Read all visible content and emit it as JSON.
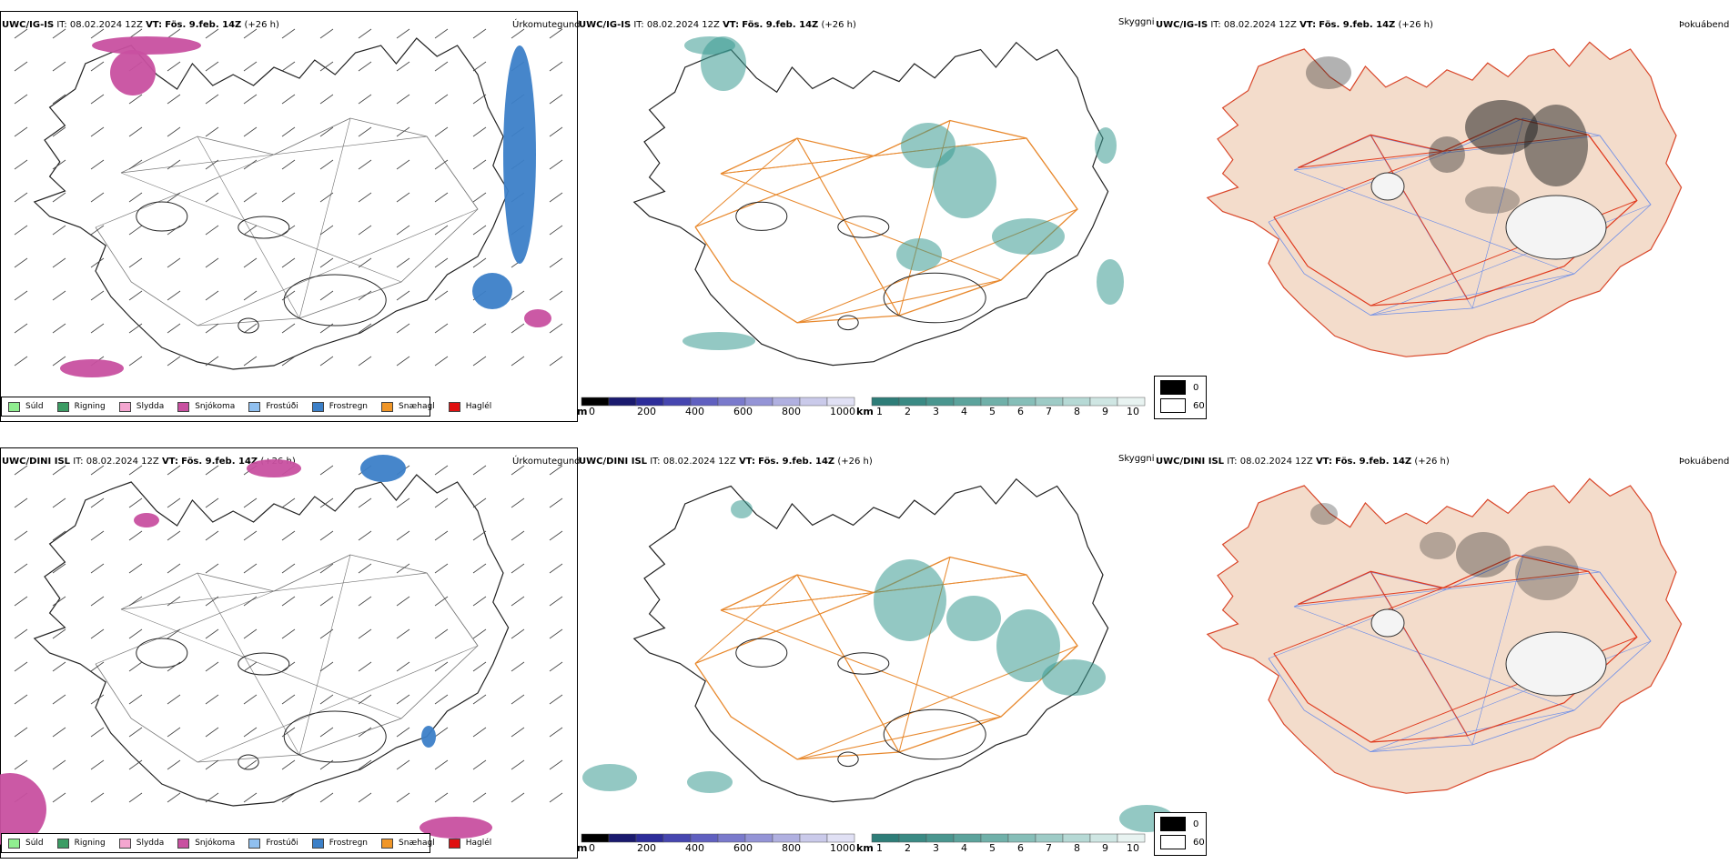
{
  "rows": [
    {
      "left": {
        "model": "UWC/IG-IS",
        "it_label": "IT:",
        "it": "08.02.2024 12Z",
        "vt_label": "VT:",
        "vt": "Fös. 9.feb. 14Z",
        "lead": "(+26 h)",
        "title": "Úrkomutegund"
      },
      "middle": {
        "model": "UWC/IG-IS",
        "it_label": "IT:",
        "it": "08.02.2024 12Z",
        "vt_label": "VT:",
        "vt": "Fös. 9.feb. 14Z",
        "lead": "(+26 h)",
        "title": "Skyggni"
      },
      "right": {
        "model": "UWC/IG-IS",
        "it_label": "IT:",
        "it": "08.02.2024 12Z",
        "vt_label": "VT:",
        "vt": "Fös. 9.feb. 14Z",
        "lead": "(+26 h)",
        "title": "Þokuábendi"
      }
    },
    {
      "left": {
        "model": "UWC/DINI ISL",
        "it_label": "IT:",
        "it": "08.02.2024 12Z",
        "vt_label": "VT:",
        "vt": "Fös. 9.feb. 14Z",
        "lead": "(+26 h)",
        "title": "Úrkomutegund"
      },
      "middle": {
        "model": "UWC/DINI ISL",
        "it_label": "IT:",
        "it": "08.02.2024 12Z",
        "vt_label": "VT:",
        "vt": "Fös. 9.feb. 14Z",
        "lead": "(+26 h)",
        "title": "Skyggni"
      },
      "right": {
        "model": "UWC/DINI ISL",
        "it_label": "IT:",
        "it": "08.02.2024 12Z",
        "vt_label": "VT:",
        "vt": "Fös. 9.feb. 14Z",
        "lead": "(+26 h)",
        "title": "Þokuábendi"
      }
    }
  ],
  "precip_legend": [
    {
      "label": "Súld",
      "color": "#90ee90"
    },
    {
      "label": "Rigning",
      "color": "#3c9c64"
    },
    {
      "label": "Slydda",
      "color": "#f4a6d0"
    },
    {
      "label": "Snjókoma",
      "color": "#c850a0"
    },
    {
      "label": "Frostúði",
      "color": "#90c0f0"
    },
    {
      "label": "Frostregn",
      "color": "#3c80c8"
    },
    {
      "label": "Snæhagl",
      "color": "#f09628"
    },
    {
      "label": "Haglél",
      "color": "#e01010"
    }
  ],
  "visibility_scale_m": {
    "unit": "m",
    "ticks": [
      "0",
      "200",
      "400",
      "600",
      "800",
      "1000"
    ]
  },
  "visibility_scale_km": {
    "unit": "km",
    "ticks": [
      "1",
      "2",
      "3",
      "4",
      "5",
      "6",
      "7",
      "8",
      "9",
      "10"
    ]
  },
  "fog_legend": [
    {
      "label": "0",
      "color": "#000000"
    },
    {
      "label": "60",
      "color": "#ffffff"
    }
  ],
  "colors": {
    "road": "#e8892e",
    "coast": "#000000",
    "land_fog": "#f3dccb",
    "fog_road": "#e03a1e",
    "river": "#6f8fe8",
    "teal": "#3a9a92",
    "snow": "#c850a0",
    "frz_rain": "#3c80c8"
  }
}
